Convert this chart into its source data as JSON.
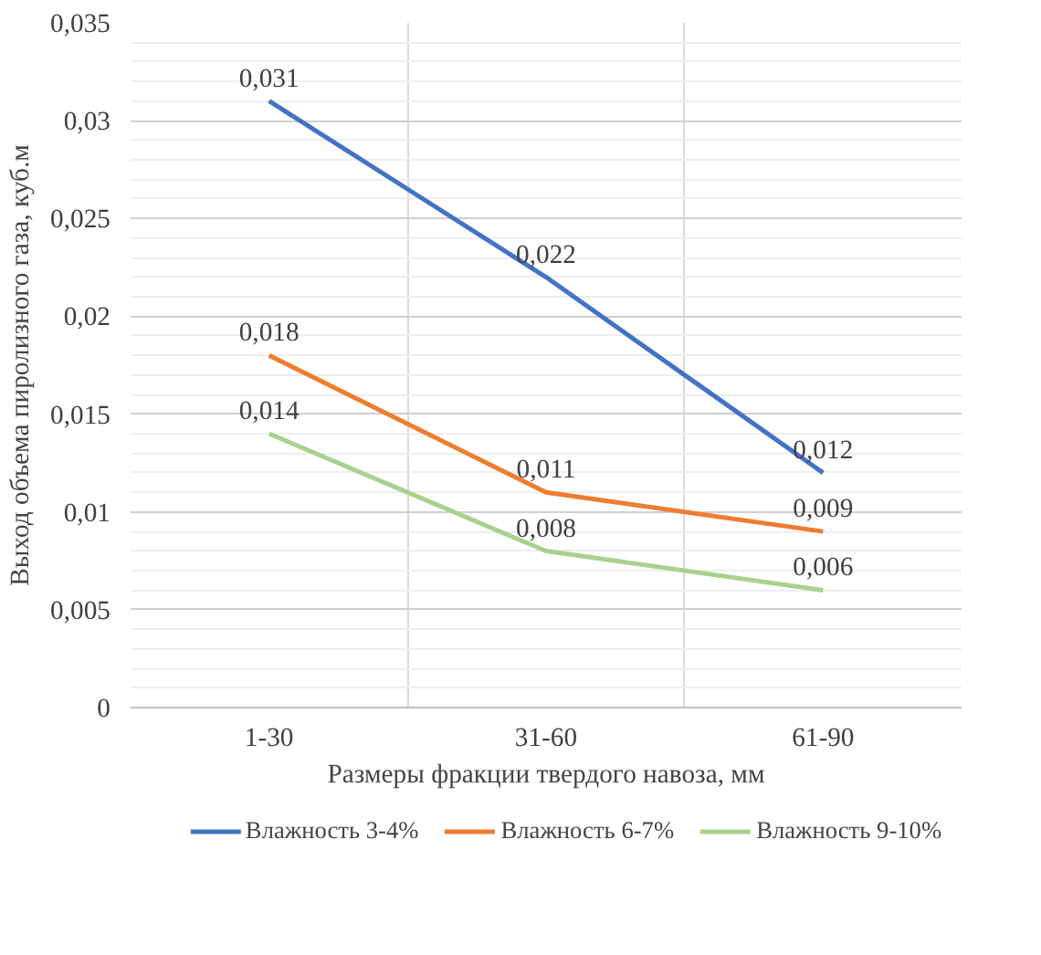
{
  "chart_data": {
    "type": "line",
    "xlabel": "Размеры фракции твердого навоза, мм",
    "ylabel": "Выход объема пиролизного газа, куб.м",
    "categories": [
      "1-30",
      "31-60",
      "61-90"
    ],
    "series": [
      {
        "name": "Влажность 3-4%",
        "color": "#4472c4",
        "values": [
          0.031,
          0.022,
          0.012
        ],
        "value_labels": [
          "0,031",
          "0,022",
          "0,012"
        ]
      },
      {
        "name": "Влажность 6-7%",
        "color": "#ed7d31",
        "values": [
          0.018,
          0.011,
          0.009
        ],
        "value_labels": [
          "0,018",
          "0,011",
          "0,009"
        ]
      },
      {
        "name": "Влажность 9-10%",
        "color": "#a9d18e",
        "values": [
          0.014,
          0.008,
          0.006
        ],
        "value_labels": [
          "0,014",
          "0,008",
          "0,006"
        ]
      }
    ],
    "ylim": [
      0,
      0.035
    ],
    "yticks": [
      {
        "value": 0,
        "label": "0"
      },
      {
        "value": 0.005,
        "label": "0,005"
      },
      {
        "value": 0.01,
        "label": "0,01"
      },
      {
        "value": 0.015,
        "label": "0,015"
      },
      {
        "value": 0.02,
        "label": "0,02"
      },
      {
        "value": 0.025,
        "label": "0,025"
      },
      {
        "value": 0.03,
        "label": "0,03"
      },
      {
        "value": 0.035,
        "label": "0,035"
      }
    ],
    "grid": true,
    "legend": "bottom",
    "marker": "none",
    "line_style": "solid"
  }
}
